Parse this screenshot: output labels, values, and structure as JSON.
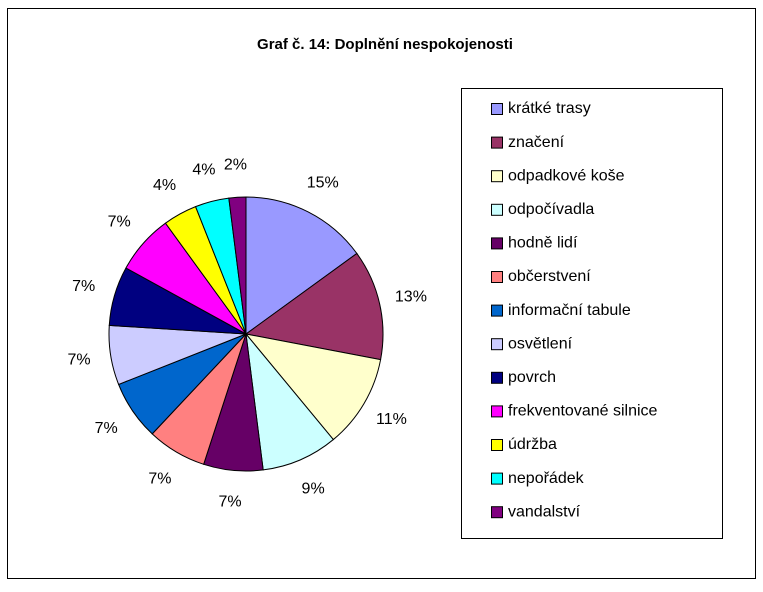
{
  "chart_data": {
    "type": "pie",
    "title": "Graf č. 14: Doplnění nespokojenosti",
    "categories": [
      "krátké trasy",
      "značení",
      "odpadkové koše",
      "odpočívadla",
      "hodně lidí",
      "občerstvení",
      "informační tabule",
      "osvětlení",
      "povrch",
      "frekventované silnice",
      "údržba",
      "nepořádek",
      "vandalství"
    ],
    "values": [
      15,
      13,
      11,
      9,
      7,
      7,
      7,
      7,
      7,
      7,
      4,
      4,
      2
    ],
    "value_labels": [
      "15%",
      "13%",
      "11%",
      "9%",
      "7%",
      "7%",
      "7%",
      "7%",
      "7%",
      "7%",
      "4%",
      "4%",
      "2%"
    ],
    "colors": [
      "#9999FF",
      "#993366",
      "#FFFFCC",
      "#CCFFFF",
      "#660066",
      "#FF8080",
      "#0066CC",
      "#CCCCFF",
      "#000080",
      "#FF00FF",
      "#FFFF00",
      "#00FFFF",
      "#800080"
    ],
    "legend": "right"
  }
}
